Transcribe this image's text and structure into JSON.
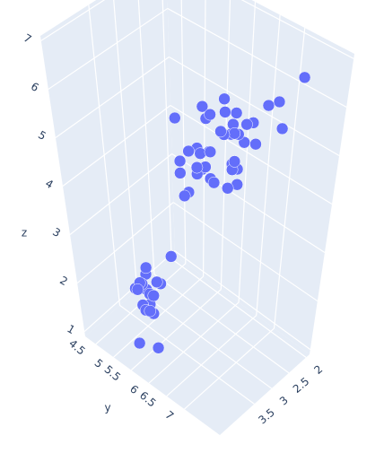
{
  "chart_data": {
    "type": "scatter3d",
    "color": "#636efa",
    "x_title": null,
    "y_title": "y",
    "z_title": "z",
    "x": [
      3.5,
      3.0,
      3.2,
      3.1,
      3.6,
      3.9,
      3.4,
      3.4,
      2.9,
      3.1,
      3.7,
      3.4,
      3.0,
      4.0,
      4.4,
      3.8,
      2.3,
      3.7,
      3.3,
      3.2,
      3.2,
      3.1,
      2.3,
      2.8,
      2.8,
      3.3,
      2.4,
      2.9,
      2.7,
      2.0,
      3.0,
      2.2,
      2.9,
      2.9,
      3.1,
      2.7,
      2.2,
      3.2,
      2.8,
      2.5,
      2.8,
      3.3,
      2.7,
      3.0,
      3.0,
      3.0,
      2.5,
      2.9,
      3.6,
      2.7,
      3.0,
      2.5,
      3.8,
      2.6,
      2.2,
      3.2,
      3.8,
      2.8,
      2.6,
      3.0,
      3.3
    ],
    "y": [
      5.1,
      4.9,
      4.7,
      4.6,
      5.0,
      5.4,
      4.6,
      5.0,
      4.4,
      4.9,
      5.4,
      4.8,
      4.3,
      5.8,
      5.7,
      5.1,
      4.5,
      5.3,
      5.0,
      7.0,
      6.4,
      6.9,
      5.5,
      6.5,
      5.7,
      6.3,
      4.9,
      6.6,
      5.2,
      5.0,
      5.9,
      6.0,
      6.1,
      5.6,
      6.7,
      5.8,
      6.2,
      5.9,
      6.1,
      5.1,
      5.7,
      6.3,
      5.8,
      7.1,
      6.5,
      7.6,
      4.9,
      7.3,
      7.2,
      6.4,
      6.8,
      5.7,
      7.7,
      7.7,
      6.0,
      6.9,
      7.9,
      6.3,
      6.1,
      7.7,
      6.7
    ],
    "z": [
      1.4,
      1.4,
      1.3,
      1.5,
      1.4,
      1.7,
      1.4,
      1.5,
      1.4,
      1.5,
      1.5,
      1.6,
      1.1,
      1.2,
      1.5,
      1.9,
      1.3,
      1.5,
      1.4,
      4.7,
      4.5,
      4.9,
      4.0,
      4.6,
      4.5,
      4.7,
      3.3,
      4.6,
      3.9,
      3.5,
      4.2,
      4.0,
      4.7,
      3.6,
      4.4,
      4.1,
      4.5,
      4.8,
      4.0,
      3.0,
      4.1,
      6.0,
      5.1,
      5.9,
      5.8,
      6.6,
      4.5,
      6.3,
      6.1,
      5.3,
      5.5,
      5.0,
      6.7,
      6.9,
      5.0,
      5.7,
      6.4,
      5.1,
      5.6,
      6.1,
      5.7
    ],
    "xlim": [
      1.9,
      4.5
    ],
    "ylim": [
      4.2,
      8.0
    ],
    "zlim": [
      0.9,
      7.1
    ],
    "xticks": [
      2,
      2.5,
      3,
      3.5
    ],
    "yticks": [
      4.5,
      5,
      5.5,
      6,
      6.5,
      7
    ],
    "zticks": [
      1,
      2,
      3,
      4,
      5,
      6,
      7
    ],
    "grid": true
  }
}
